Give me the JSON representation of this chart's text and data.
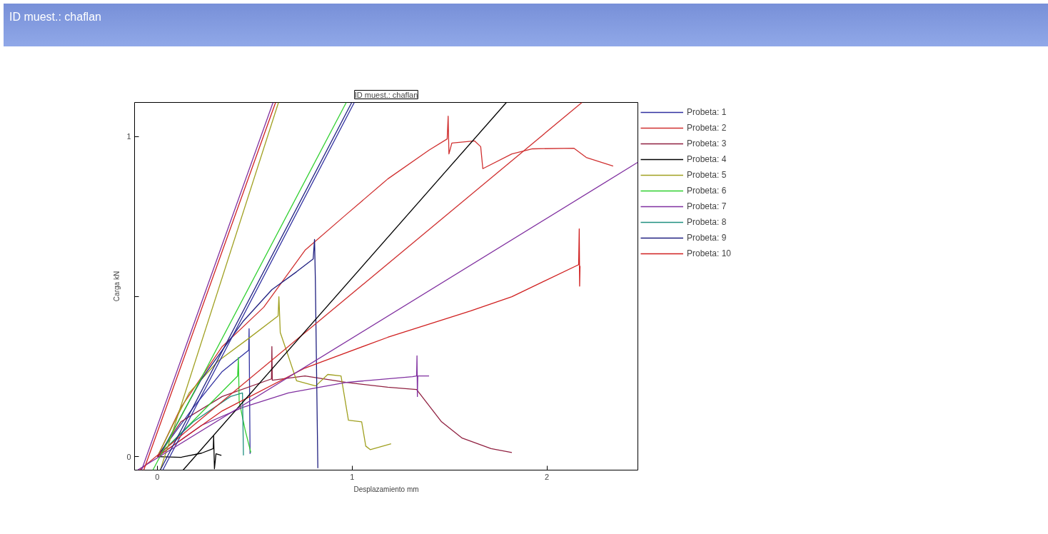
{
  "chart_data": {
    "type": "line",
    "title": "ID muest.: chaflan",
    "annotations": [
      "ID muest.: chaflan"
    ],
    "xlabel": "Desplazamiento mm",
    "ylabel": "Carga kN",
    "xlim": [
      -0.117,
      2.467
    ],
    "ylim": [
      -0.042,
      1.107
    ],
    "xticks": [
      0,
      1,
      2
    ],
    "yticks": [
      0,
      {
        "value": 0.5,
        "label": null
      },
      1
    ],
    "grid": false,
    "legend": "right",
    "marker": "none",
    "line_style": "solid",
    "series": [
      {
        "name": "Probeta: 1",
        "color": "#3030a0",
        "x": [
          0,
          0.185,
          0.333,
          0.469,
          0.471,
          0.476
        ],
        "values": [
          0,
          0.154,
          0.266,
          0.333,
          0.4,
          0.009
        ]
      },
      {
        "name": "Probeta: 2",
        "color": "#d03030",
        "x": [
          0,
          0.121,
          0.333,
          0.546,
          0.758,
          0.97,
          1.183,
          1.395,
          1.488,
          1.493,
          1.497,
          1.512,
          1.628,
          1.66,
          1.671,
          1.82,
          1.926,
          2.138,
          2.202,
          2.34
        ],
        "values": [
          0,
          0.154,
          0.344,
          0.467,
          0.645,
          0.757,
          0.868,
          0.958,
          0.993,
          1.064,
          0.946,
          0.98,
          0.987,
          0.969,
          0.9,
          0.946,
          0.962,
          0.964,
          0.935,
          0.908
        ]
      },
      {
        "name": "Probeta: 3",
        "color": "#902040",
        "x": [
          0,
          0.121,
          0.333,
          0.586,
          0.588,
          0.59,
          0.758,
          0.97,
          1.183,
          1.331,
          1.459,
          1.565,
          1.713,
          1.82
        ],
        "values": [
          0,
          0.109,
          0.188,
          0.243,
          0.344,
          0.239,
          0.252,
          0.232,
          0.217,
          0.21,
          0.109,
          0.058,
          0.025,
          0.013
        ]
      },
      {
        "name": "Probeta: 4",
        "color": "#000000",
        "x": [
          0,
          0.121,
          0.227,
          0.287,
          0.289,
          0.293,
          0.301,
          0.329
        ],
        "values": [
          0,
          -0.002,
          0.011,
          0.025,
          0.065,
          -0.038,
          0.009,
          0.004
        ]
      },
      {
        "name": "Probeta: 5",
        "color": "#a0a020",
        "x": [
          0,
          0.079,
          0.163,
          0.312,
          0.461,
          0.62,
          0.624,
          0.631,
          0.662,
          0.715,
          0.813,
          0.875,
          0.943,
          0.981,
          1.049,
          1.07,
          1.093,
          1.2
        ],
        "values": [
          0,
          0.098,
          0.199,
          0.299,
          0.366,
          0.44,
          0.5,
          0.388,
          0.333,
          0.237,
          0.221,
          0.257,
          0.252,
          0.114,
          0.109,
          0.033,
          0.022,
          0.04
        ]
      },
      {
        "name": "Probeta: 6",
        "color": "#30d030",
        "x": [
          0,
          0.155,
          0.321,
          0.412,
          0.416,
          0.42,
          0.45,
          0.48
        ],
        "values": [
          0,
          0.094,
          0.196,
          0.252,
          0.31,
          0.174,
          0.085,
          0.013
        ]
      },
      {
        "name": "Probeta: 7",
        "color": "#8030a0",
        "x": [
          0,
          0.227,
          0.439,
          0.673,
          0.97,
          1.31,
          1.331,
          1.333,
          1.335,
          1.337,
          1.395
        ],
        "values": [
          0,
          0.098,
          0.154,
          0.199,
          0.232,
          0.25,
          0.252,
          0.315,
          0.188,
          0.252,
          0.252
        ]
      },
      {
        "name": "Probeta: 8",
        "color": "#209080",
        "x": [
          0,
          0.185,
          0.376,
          0.437,
          0.442
        ],
        "values": [
          0,
          0.109,
          0.188,
          0.199,
          0.004
        ]
      },
      {
        "name": "Probeta: 9",
        "color": "#202080",
        "x": [
          0,
          0.036,
          0.227,
          0.439,
          0.588,
          0.715,
          0.8,
          0.807,
          0.811,
          0.824
        ],
        "values": [
          0,
          0.031,
          0.243,
          0.422,
          0.522,
          0.578,
          0.618,
          0.679,
          0.56,
          -0.036
        ]
      },
      {
        "name": "Probeta: 10",
        "color": "#d02020",
        "x": [
          0,
          0.333,
          0.758,
          1.183,
          1.607,
          1.82,
          2.163,
          2.166,
          2.168,
          2.17
        ],
        "values": [
          0,
          0.143,
          0.277,
          0.373,
          0.455,
          0.5,
          0.6,
          0.712,
          0.533,
          0.596
        ]
      },
      {
        "color": "#3030a0",
        "x": [
          0.028,
          1.011
        ],
        "values": [
          -0.042,
          1.107
        ]
      },
      {
        "color": "#d03030",
        "x": [
          -0.091,
          2.18
        ],
        "values": [
          -0.042,
          1.107
        ]
      },
      {
        "color": "#000000",
        "x": [
          0.132,
          1.792
        ],
        "values": [
          -0.042,
          1.107
        ]
      },
      {
        "color": "#a0a020",
        "x": [
          0.015,
          0.622
        ],
        "values": [
          -0.042,
          1.107
        ]
      },
      {
        "color": "#30d030",
        "x": [
          -0.023,
          0.97
        ],
        "values": [
          -0.042,
          1.107
        ]
      },
      {
        "color": "#8030a0",
        "x": [
          -0.081,
          0.594
        ],
        "values": [
          -0.042,
          1.107
        ]
      },
      {
        "color": "#8030a0",
        "x": [
          -0.102,
          2.467
        ],
        "values": [
          -0.042,
          0.92
        ]
      },
      {
        "color": "#202080",
        "x": [
          0.015,
          0.998
        ],
        "values": [
          -0.042,
          1.107
        ]
      },
      {
        "color": "#d02020",
        "x": [
          -0.07,
          0.607
        ],
        "values": [
          -0.042,
          1.107
        ]
      }
    ]
  }
}
